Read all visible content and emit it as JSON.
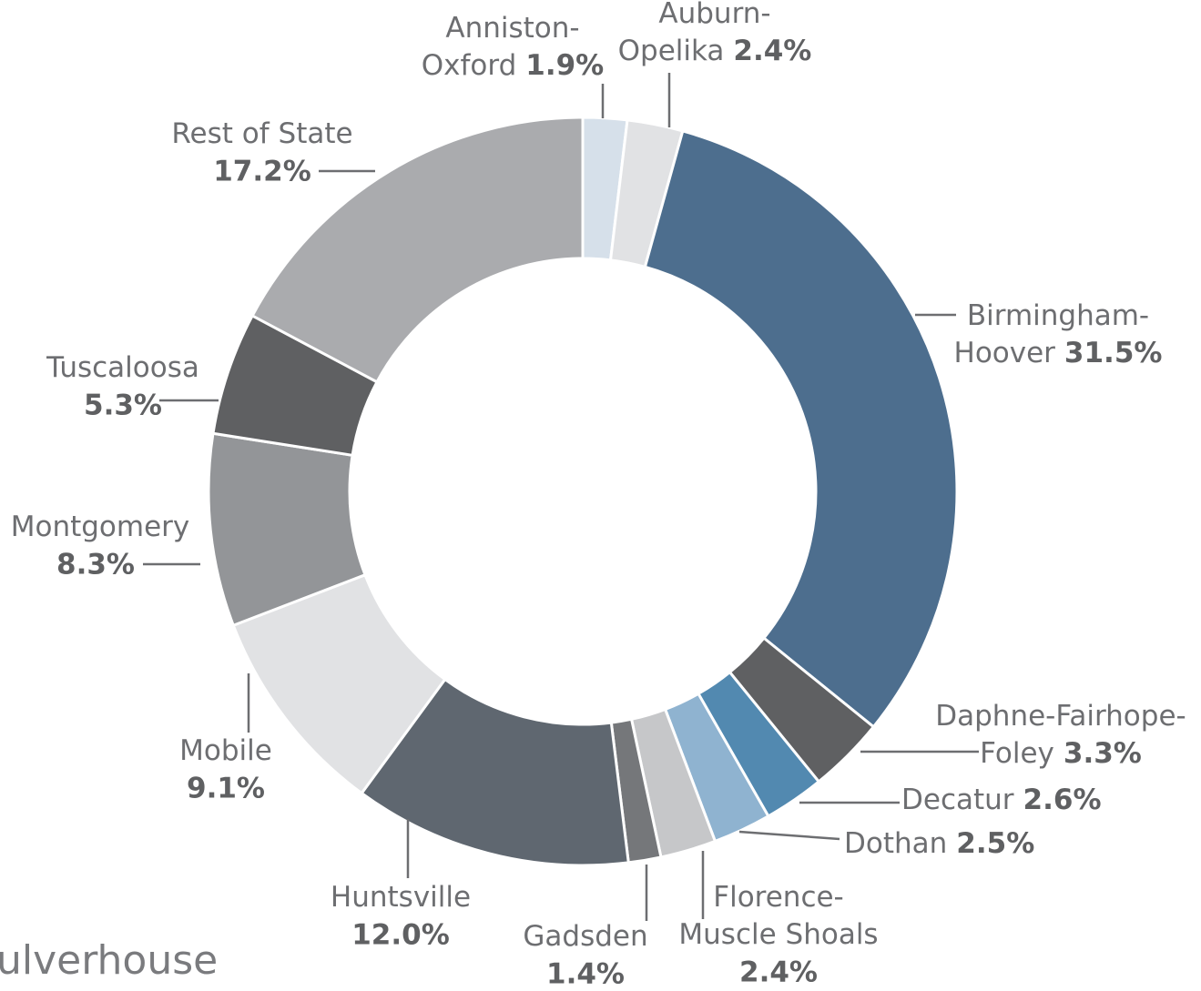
{
  "chart_data": {
    "type": "donut",
    "categories": [
      [
        "Anniston-",
        "Oxford"
      ],
      [
        "Auburn-",
        "Opelika"
      ],
      [
        "Birmingham-",
        "Hoover"
      ],
      [
        "Daphne-Fairhope-",
        "Foley"
      ],
      [
        "Decatur"
      ],
      [
        "Dothan"
      ],
      [
        "Florence-",
        "Muscle Shoals"
      ],
      [
        "Gadsden"
      ],
      [
        "Huntsville"
      ],
      [
        "Mobile"
      ],
      [
        "Montgomery"
      ],
      [
        "Tuscaloosa"
      ],
      [
        "Rest of State"
      ]
    ],
    "values": [
      1.9,
      2.4,
      31.5,
      3.3,
      2.6,
      2.5,
      2.4,
      1.4,
      12.0,
      9.1,
      8.3,
      5.3,
      17.2
    ],
    "value_labels": [
      "1.9%",
      "2.4%",
      "31.5%",
      "3.3%",
      "2.6%",
      "2.5%",
      "2.4%",
      "1.4%",
      "12.0%",
      "9.1%",
      "8.3%",
      "5.3%",
      "17.2%"
    ],
    "colors": [
      "#d6e0ea",
      "#e1e2e4",
      "#4d6e8e",
      "#5f6062",
      "#5289b0",
      "#8fb3d0",
      "#c6c7c9",
      "#75777a",
      "#5f6770",
      "#e1e2e4",
      "#939598",
      "#5f6062",
      "#aaabae"
    ],
    "watermark": "ulverhouse"
  }
}
